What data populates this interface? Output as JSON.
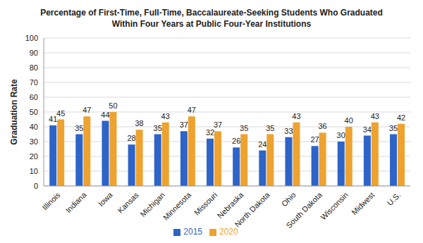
{
  "chart_data": {
    "type": "bar",
    "title": "Percentage of First-Time, Full-Time, Baccalaureate-Seeking Students Who Graduated Within Four Years at Public Four-Year Institutions",
    "y_label": "Graduation Rate",
    "categories": [
      "Illinois",
      "Indiana",
      "Iowa",
      "Kansas",
      "Michigan",
      "Minnesota",
      "Missouri",
      "Nebraska",
      "North Dakota",
      "Ohio",
      "South Dakota",
      "Wisconsin",
      "Midwest",
      "U.S."
    ],
    "series": [
      {
        "name": "2015",
        "color": "#2e64c8",
        "values": [
          41,
          35,
          44,
          28,
          35,
          37,
          32,
          26,
          24,
          33,
          27,
          30,
          34,
          35
        ]
      },
      {
        "name": "2020",
        "color": "#eea230",
        "values": [
          45,
          47,
          50,
          38,
          43,
          47,
          37,
          35,
          35,
          43,
          36,
          40,
          43,
          42
        ]
      }
    ],
    "ylim": [
      0,
      100
    ],
    "yticks": [
      0,
      10,
      20,
      30,
      40,
      50,
      60,
      70,
      80,
      90,
      100
    ],
    "grid": true,
    "legend": "bottom",
    "data_labels": true
  }
}
